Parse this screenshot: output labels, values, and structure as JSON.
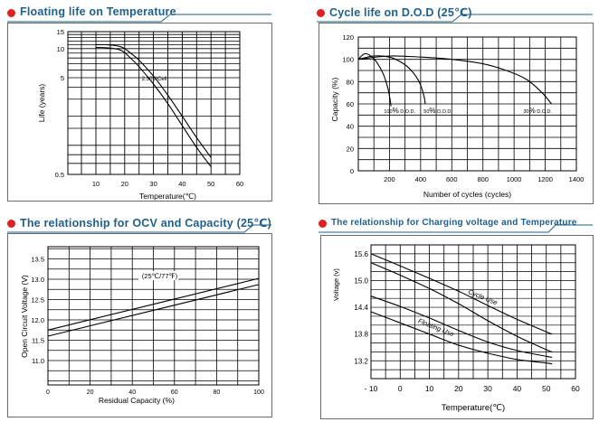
{
  "colors": {
    "title": "#1f5f8b",
    "dot": "#e02020",
    "grid": "#000000",
    "curve": "#000000"
  },
  "chart_data": [
    {
      "id": "float",
      "type": "line",
      "title": "Floating life on Temperature",
      "xlabel": "Temperature(℃)",
      "ylabel": "Life (years)",
      "xlim": [
        0,
        60
      ],
      "ylim": [
        0.5,
        15
      ],
      "yscale": "log",
      "xticks": [
        10,
        20,
        30,
        40,
        50,
        60
      ],
      "yticks": [
        15,
        10,
        5,
        0.5
      ],
      "annotation": "2.30V/Cell",
      "series": [
        {
          "name": "upper",
          "x": [
            10,
            14,
            18,
            20,
            22,
            25,
            30,
            35,
            40,
            45,
            50
          ],
          "y": [
            11.0,
            10.95,
            10.6,
            10.0,
            9.0,
            7.6,
            5.2,
            3.3,
            2.0,
            1.2,
            0.75
          ]
        },
        {
          "name": "lower",
          "x": [
            10,
            14,
            18,
            20,
            22,
            25,
            30,
            35,
            40,
            45,
            50
          ],
          "y": [
            10.3,
            10.2,
            9.8,
            9.1,
            8.0,
            6.5,
            4.3,
            2.7,
            1.6,
            0.95,
            0.6
          ]
        }
      ]
    },
    {
      "id": "cycle",
      "type": "line",
      "title": "Cycle life on D.O.D (25℃)",
      "xlabel": "Number of cycles (cycles)",
      "ylabel": "Capacity  (%)",
      "xlim": [
        0,
        1400
      ],
      "ylim": [
        0,
        120
      ],
      "xticks": [
        0,
        200,
        400,
        600,
        800,
        1000,
        1200,
        1400
      ],
      "yticks": [
        0,
        20,
        40,
        60,
        80,
        100,
        120
      ],
      "series": [
        {
          "name": "100% D.O.D.",
          "x": [
            0,
            40,
            80,
            120,
            160,
            190,
            205,
            210
          ],
          "y": [
            100,
            105,
            103,
            97,
            87,
            74,
            63,
            58
          ]
        },
        {
          "name": "50% D.O.D.",
          "x": [
            0,
            100,
            200,
            280,
            340,
            390,
            420,
            430
          ],
          "y": [
            100,
            103,
            102,
            97,
            90,
            80,
            68,
            60
          ]
        },
        {
          "name": "30% D.O.D.",
          "x": [
            0,
            200,
            400,
            600,
            800,
            950,
            1080,
            1180,
            1240
          ],
          "y": [
            100,
            103,
            102,
            100,
            96,
            90,
            82,
            70,
            60
          ]
        }
      ],
      "labels": [
        {
          "prefix": "100",
          "pct": "%",
          "suffix": " D.O.D.",
          "x": 165,
          "y": 52
        },
        {
          "prefix": "50",
          "pct": "%",
          "suffix": " D.O.D.",
          "x": 420,
          "y": 52
        },
        {
          "prefix": "30",
          "pct": "%",
          "suffix": " D.O.D.",
          "x": 1060,
          "y": 52
        }
      ]
    },
    {
      "id": "ocv",
      "type": "line",
      "title": "The relationship  for OCV and Capacity (25℃)",
      "xlabel": "Residual Capacity (%)",
      "ylabel": "Open Circuit Voltage (V)",
      "xlim": [
        0,
        100
      ],
      "ylim": [
        10.4,
        13.8
      ],
      "xticks": [
        0,
        20,
        40,
        60,
        80,
        100
      ],
      "yticks": [
        13.5,
        13.0,
        12.5,
        12.0,
        11.5,
        11.0
      ],
      "annotation": "(25℃/77℉)",
      "series": [
        {
          "name": "upper",
          "x": [
            0,
            100
          ],
          "y": [
            11.75,
            13.02
          ]
        },
        {
          "name": "lower",
          "x": [
            0,
            100
          ],
          "y": [
            11.6,
            12.87
          ]
        }
      ]
    },
    {
      "id": "charge",
      "type": "line",
      "title": "The relationship for Charging voltage and Temperature",
      "xlabel": "Temperature(℃)",
      "ylabel": "Voltage (v)",
      "xlim": [
        -10,
        60
      ],
      "ylim": [
        12.8,
        15.8
      ],
      "xticks": [
        -10,
        0,
        10,
        20,
        30,
        40,
        50,
        60
      ],
      "yticks": [
        15.6,
        15.0,
        14.4,
        13.8,
        13.2
      ],
      "series": [
        {
          "name": "Cycle Use",
          "x": [
            -10,
            0,
            10,
            20,
            30,
            40,
            50,
            52
          ],
          "y": [
            15.6,
            15.33,
            15.05,
            14.76,
            14.44,
            14.13,
            13.85,
            13.8
          ]
        },
        {
          "name": "Cycle Use lower",
          "x": [
            -10,
            0,
            10,
            20,
            30,
            40,
            50,
            52
          ],
          "y": [
            15.4,
            15.12,
            14.82,
            14.48,
            14.1,
            13.75,
            13.45,
            13.4
          ]
        },
        {
          "name": "Floating Use",
          "x": [
            -10,
            0,
            10,
            20,
            30,
            40,
            50,
            52
          ],
          "y": [
            14.65,
            14.42,
            14.16,
            13.88,
            13.62,
            13.43,
            13.3,
            13.28
          ]
        },
        {
          "name": "Floating Use lower",
          "x": [
            -10,
            0,
            10,
            20,
            30,
            40,
            50,
            52
          ],
          "y": [
            14.3,
            14.05,
            13.8,
            13.55,
            13.37,
            13.23,
            13.15,
            13.13
          ]
        }
      ],
      "curve_labels": [
        "Cycle Use",
        "Floating Use"
      ]
    }
  ]
}
